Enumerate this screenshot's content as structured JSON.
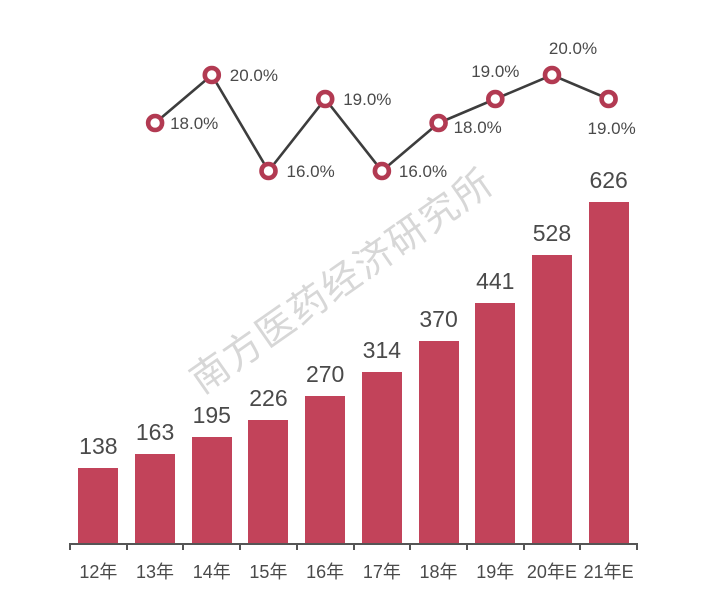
{
  "watermark": {
    "text": "南方医药经济研究所"
  },
  "colors": {
    "bar": "#c2435a",
    "marker_ring": "#b23a52",
    "marker_fill": "#ffffff",
    "line": "#3d3d3d",
    "value_text": "#4a4a4a",
    "axis": "#555555",
    "watermark": "#d7d7d7",
    "background": "#ffffff"
  },
  "chart_data": {
    "type": "combo",
    "title": "",
    "xlabel": "",
    "ylabel": "",
    "grid": false,
    "legend": "none",
    "categories": [
      "12年",
      "13年",
      "14年",
      "15年",
      "16年",
      "17年",
      "18年",
      "19年",
      "20年E",
      "21年E"
    ],
    "series": [
      {
        "name": "bar-values",
        "type": "bar",
        "values": [
          138,
          163,
          195,
          226,
          270,
          314,
          370,
          441,
          528,
          626
        ],
        "data_labels": [
          "138",
          "163",
          "195",
          "226",
          "270",
          "314",
          "370",
          "441",
          "528",
          "626"
        ],
        "ylim": [
          0,
          700
        ]
      },
      {
        "name": "growth-rate-line",
        "type": "line",
        "unit": "%",
        "categories": [
          "13年",
          "14年",
          "15年",
          "16年",
          "17年",
          "18年",
          "19年",
          "20年E",
          "21年E"
        ],
        "values": [
          18.0,
          20.0,
          16.0,
          19.0,
          16.0,
          18.0,
          19.0,
          20.0,
          19.0
        ],
        "data_labels": [
          "18.0%",
          "20.0%",
          "16.0%",
          "19.0%",
          "16.0%",
          "18.0%",
          "19.0%",
          "20.0%",
          "19.0%"
        ],
        "ylim": [
          14,
          22
        ]
      }
    ]
  }
}
